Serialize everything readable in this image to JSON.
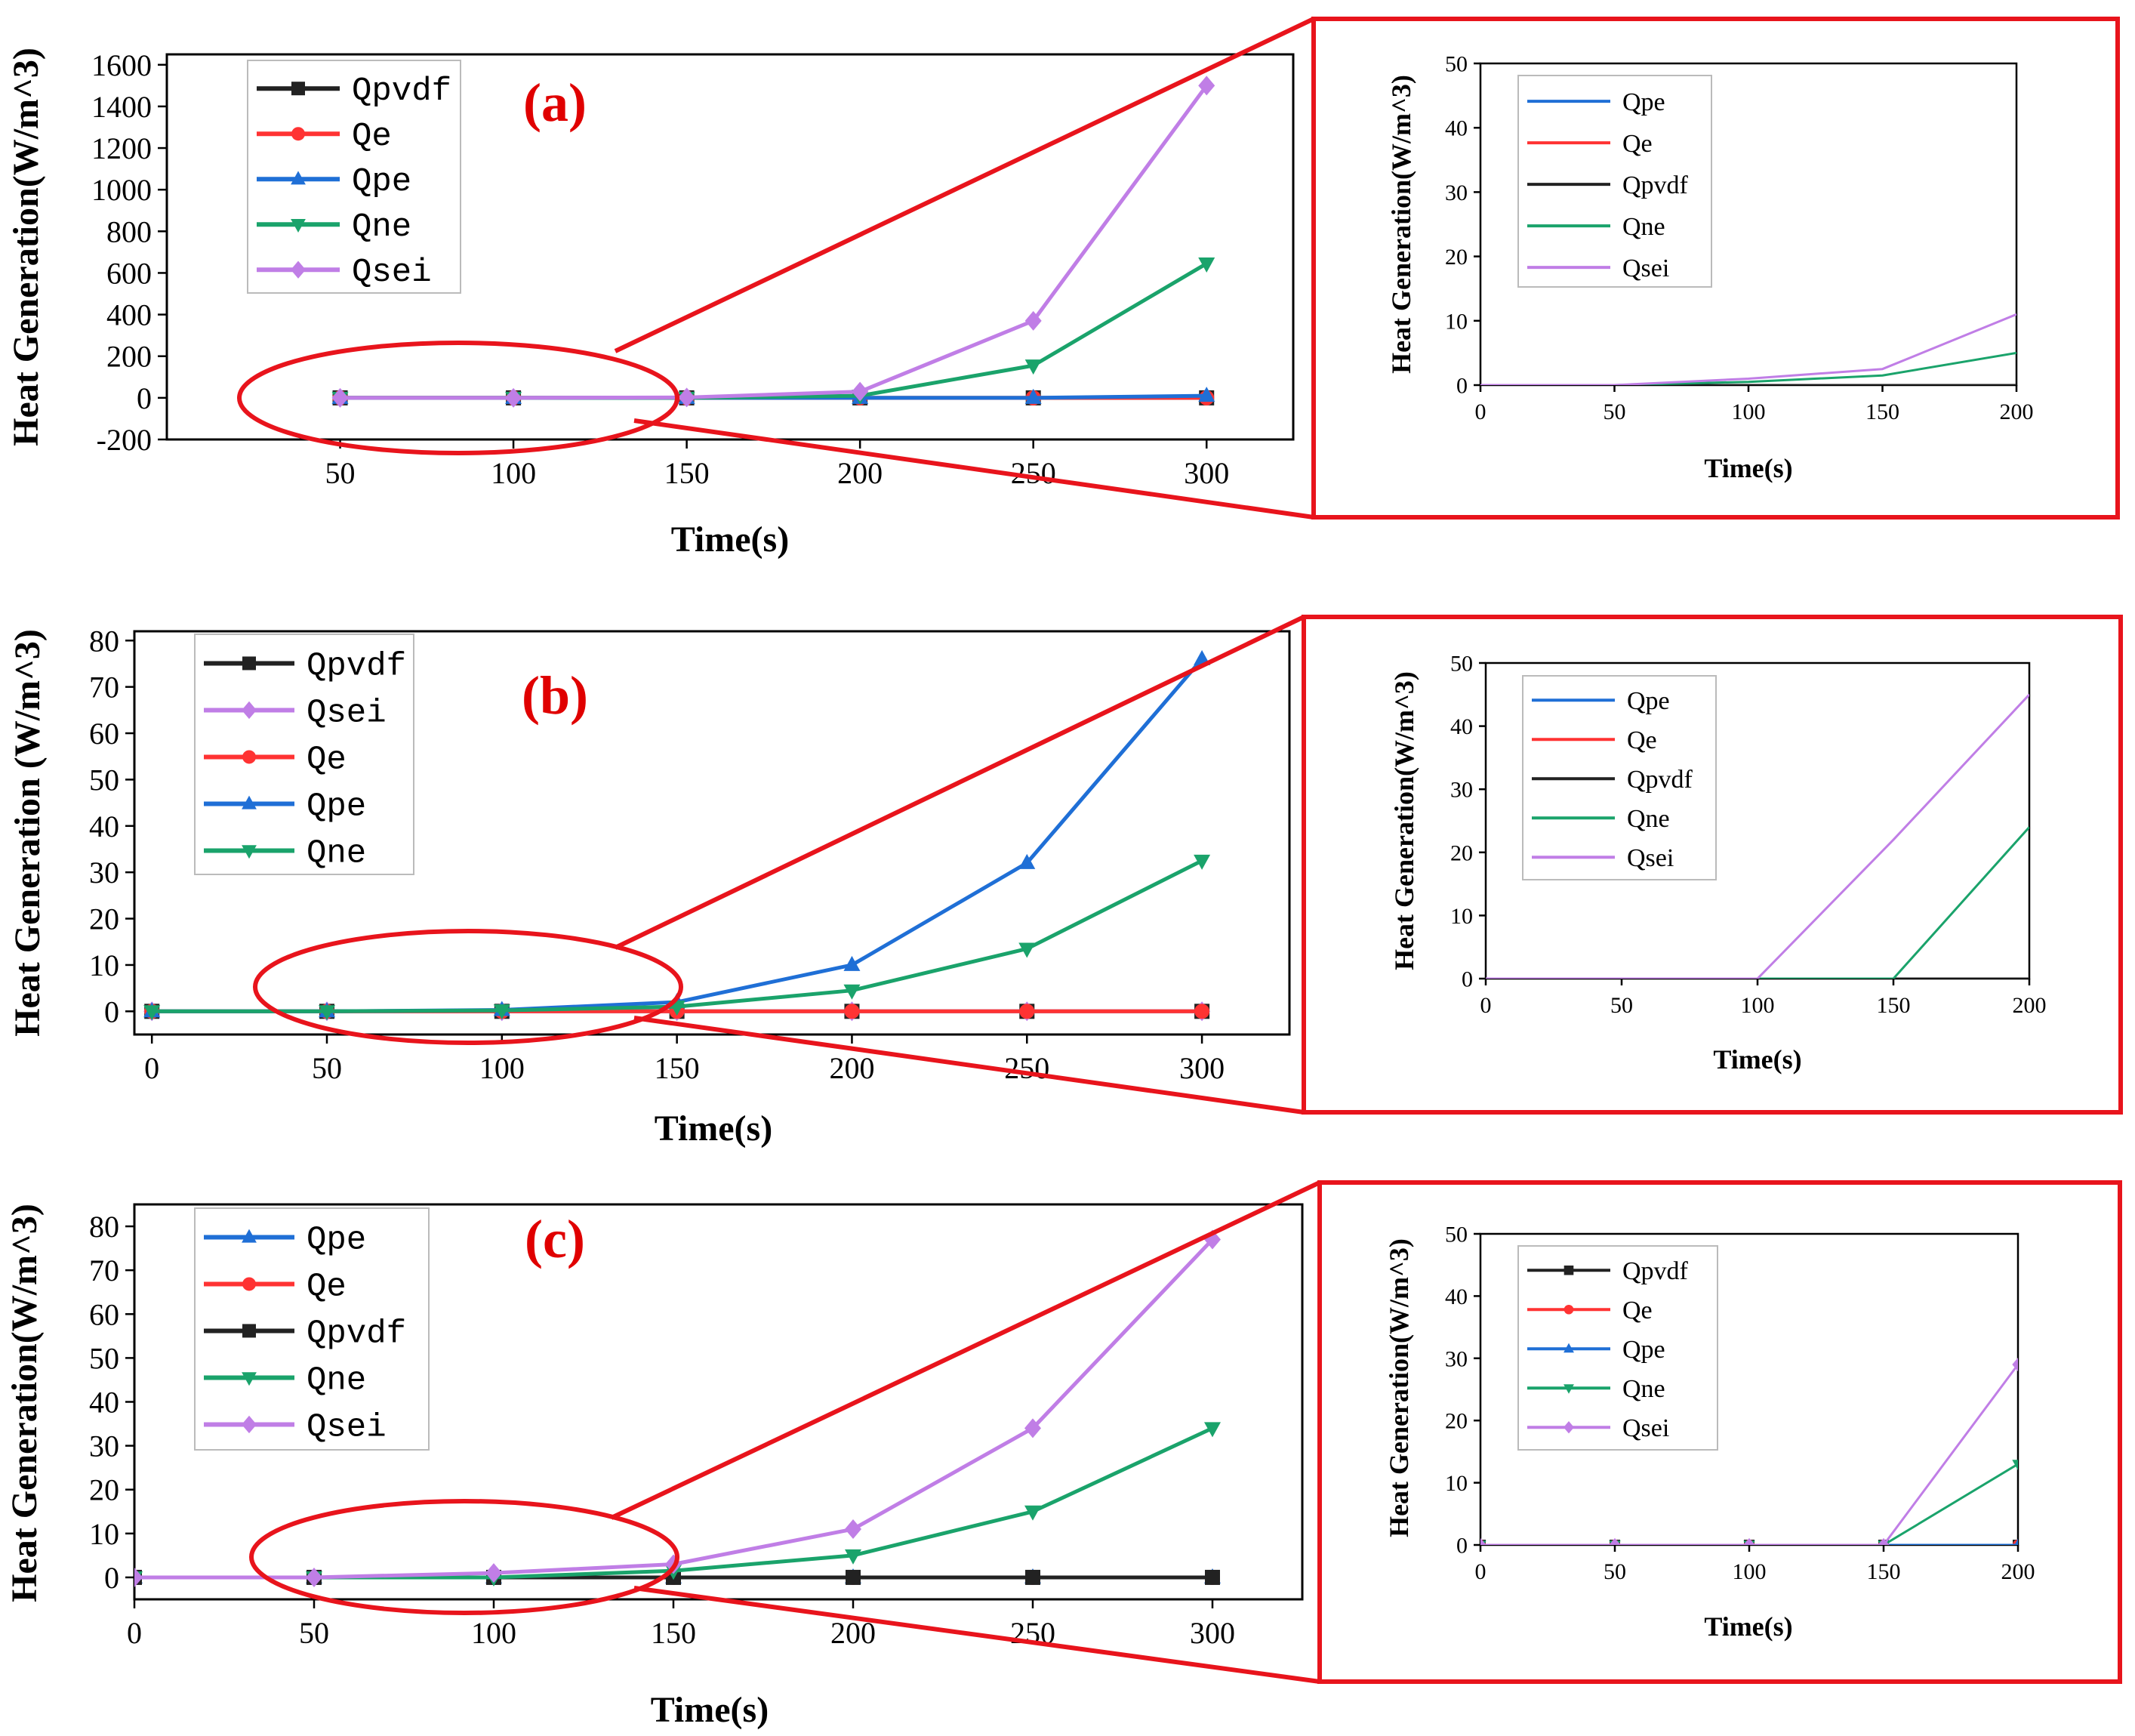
{
  "figure": {
    "colors": {
      "Qpvdf": "#222222",
      "Qe": "#ff3333",
      "Qpe": "#1f6fd6",
      "Qne": "#1aa36b",
      "Qsei": "#c07ee6",
      "highlight": "#e8141c"
    }
  },
  "chart_data": [
    {
      "id": "a-main",
      "type": "line",
      "panel_label": "(a)",
      "title": "",
      "xlabel": "Time(s)",
      "ylabel": "Heat Generation(W/m^3)",
      "xlim": [
        0,
        325
      ],
      "ylim": [
        -200,
        1650
      ],
      "x_ticks": [
        50,
        100,
        150,
        200,
        250,
        300
      ],
      "y_ticks": [
        -200,
        0,
        200,
        400,
        600,
        800,
        1000,
        1200,
        1400,
        1600
      ],
      "legend_position": "top-left",
      "markers": true,
      "x": [
        50,
        100,
        150,
        200,
        250,
        300
      ],
      "series": [
        {
          "name": "Qpvdf",
          "values": [
            0,
            0,
            0,
            0,
            0,
            0
          ]
        },
        {
          "name": "Qe",
          "values": [
            0,
            0,
            0,
            0,
            0,
            0
          ]
        },
        {
          "name": "Qpe",
          "values": [
            0,
            0,
            0,
            0,
            0,
            10
          ]
        },
        {
          "name": "Qne",
          "values": [
            0,
            0,
            0,
            10,
            155,
            645
          ]
        },
        {
          "name": "Qsei",
          "values": [
            0,
            0,
            2,
            30,
            370,
            1500
          ]
        }
      ]
    },
    {
      "id": "a-inset",
      "type": "line",
      "title": "",
      "xlabel": "Time(s)",
      "ylabel": "Heat Generation(W/m^3)",
      "xlim": [
        0,
        200
      ],
      "ylim": [
        0,
        50
      ],
      "x_ticks": [
        0,
        50,
        100,
        150,
        200
      ],
      "y_ticks": [
        0,
        10,
        20,
        30,
        40,
        50
      ],
      "legend_position": "top-left",
      "markers": false,
      "x": [
        0,
        50,
        100,
        150,
        200
      ],
      "series": [
        {
          "name": "Qpe",
          "values": [
            0,
            0,
            0,
            0,
            0
          ]
        },
        {
          "name": "Qe",
          "values": [
            0,
            0,
            0,
            0,
            0
          ]
        },
        {
          "name": "Qpvdf",
          "values": [
            0,
            0,
            0,
            0,
            0
          ]
        },
        {
          "name": "Qne",
          "values": [
            0,
            0,
            0.5,
            1.5,
            5
          ]
        },
        {
          "name": "Qsei",
          "values": [
            0,
            0,
            1,
            2.5,
            11
          ]
        }
      ]
    },
    {
      "id": "b-main",
      "type": "line",
      "panel_label": "(b)",
      "title": "",
      "xlabel": "Time(s)",
      "ylabel": "Heat Generation (W/m^3)",
      "xlim": [
        -5,
        325
      ],
      "ylim": [
        -5,
        82
      ],
      "x_ticks": [
        0,
        50,
        100,
        150,
        200,
        250,
        300
      ],
      "y_ticks": [
        0,
        10,
        20,
        30,
        40,
        50,
        60,
        70,
        80
      ],
      "y_tick_labels": [
        "0",
        "10",
        "20",
        "30",
        "40",
        "50",
        "60",
        "70",
        "80"
      ],
      "legend_position": "top-left",
      "markers": true,
      "x": [
        0,
        50,
        100,
        150,
        200,
        250,
        300
      ],
      "series": [
        {
          "name": "Qpvdf",
          "values": [
            0,
            0,
            0,
            0,
            0,
            0,
            0
          ]
        },
        {
          "name": "Qsei",
          "values": [
            0,
            0,
            0,
            0,
            0,
            0,
            0
          ]
        },
        {
          "name": "Qe",
          "values": [
            0,
            0,
            0,
            0,
            0,
            0,
            0
          ]
        },
        {
          "name": "Qpe",
          "values": [
            0,
            0,
            0.3,
            2,
            10,
            32,
            76
          ]
        },
        {
          "name": "Qne",
          "values": [
            0,
            0,
            0.2,
            1,
            4.5,
            13.5,
            32.5
          ]
        }
      ]
    },
    {
      "id": "b-inset",
      "type": "line",
      "title": "",
      "xlabel": "Time(s)",
      "ylabel": "Heat Generation(W/m^3)",
      "xlim": [
        0,
        200
      ],
      "ylim": [
        0,
        50
      ],
      "x_ticks": [
        0,
        50,
        100,
        150,
        200
      ],
      "y_ticks": [
        0,
        10,
        20,
        30,
        40,
        50
      ],
      "legend_position": "top-left",
      "markers": false,
      "x": [
        0,
        50,
        100,
        150,
        200
      ],
      "series": [
        {
          "name": "Qpe",
          "values": [
            0,
            0,
            0,
            0,
            0
          ]
        },
        {
          "name": "Qe",
          "values": [
            0,
            0,
            0,
            0,
            0
          ]
        },
        {
          "name": "Qpvdf",
          "values": [
            0,
            0,
            0,
            0,
            0
          ]
        },
        {
          "name": "Qne",
          "values": [
            0,
            0,
            0,
            0,
            24
          ]
        },
        {
          "name": "Qsei",
          "values": [
            0,
            0,
            0,
            22,
            45
          ]
        }
      ]
    },
    {
      "id": "c-main",
      "type": "line",
      "panel_label": "(c)",
      "title": "",
      "xlabel": "Time(s)",
      "ylabel": "Heat Generation(W/m^3)",
      "xlim": [
        0,
        325
      ],
      "ylim": [
        -5,
        85
      ],
      "x_ticks": [
        0,
        50,
        100,
        150,
        200,
        250,
        300
      ],
      "y_ticks": [
        0,
        10,
        20,
        30,
        40,
        50,
        60,
        70,
        80
      ],
      "legend_position": "top-left",
      "markers": true,
      "x": [
        0,
        50,
        100,
        150,
        200,
        250,
        300
      ],
      "series": [
        {
          "name": "Qpe",
          "values": [
            0,
            0,
            0,
            0,
            0,
            0,
            0
          ]
        },
        {
          "name": "Qe",
          "values": [
            0,
            0,
            0,
            0,
            0,
            0,
            0
          ]
        },
        {
          "name": "Qpvdf",
          "values": [
            0,
            0,
            0,
            0,
            0,
            0,
            0
          ]
        },
        {
          "name": "Qne",
          "values": [
            0,
            0,
            0,
            1.5,
            5,
            15,
            34
          ]
        },
        {
          "name": "Qsei",
          "values": [
            0,
            0,
            1,
            3,
            11,
            34,
            77
          ]
        }
      ]
    },
    {
      "id": "c-inset",
      "type": "line",
      "title": "",
      "xlabel": "Time(s)",
      "ylabel": "Heat Generation(W/m^3)",
      "xlim": [
        0,
        200
      ],
      "ylim": [
        0,
        50
      ],
      "x_ticks": [
        0,
        50,
        100,
        150,
        200
      ],
      "y_ticks": [
        0,
        10,
        20,
        30,
        40,
        50
      ],
      "legend_position": "top-left",
      "markers": true,
      "x": [
        0,
        50,
        100,
        150,
        200
      ],
      "series": [
        {
          "name": "Qpvdf",
          "values": [
            0,
            0,
            0,
            0,
            0
          ]
        },
        {
          "name": "Qe",
          "values": [
            0,
            0,
            0,
            0,
            0
          ]
        },
        {
          "name": "Qpe",
          "values": [
            0,
            0,
            0,
            0,
            0
          ]
        },
        {
          "name": "Qne",
          "values": [
            0,
            0,
            0,
            0,
            13
          ]
        },
        {
          "name": "Qsei",
          "values": [
            0,
            0,
            0,
            0,
            29
          ]
        }
      ]
    }
  ]
}
